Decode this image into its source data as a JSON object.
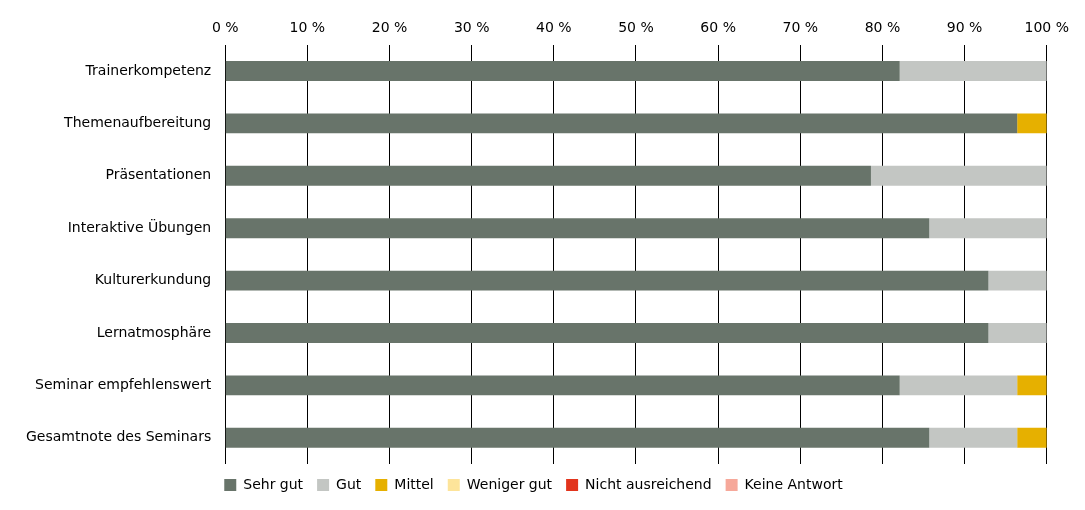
{
  "chart_data": {
    "type": "bar",
    "orientation": "horizontal",
    "stacked": true,
    "categories": [
      "Trainerkompetenz",
      "Themenaufbereitung",
      "Präsentationen",
      "Interaktive Übungen",
      "Kulturerkundung",
      "Lernatmosphäre",
      "Seminar empfehlenswert",
      "Gesamtnote des Seminars"
    ],
    "series": [
      {
        "name": "Sehr gut",
        "color": "#68746a",
        "values": [
          82.1,
          96.4,
          78.6,
          85.7,
          92.9,
          92.9,
          82.1,
          85.7
        ]
      },
      {
        "name": "Gut",
        "color": "#c3c6c3",
        "values": [
          17.9,
          0,
          21.4,
          14.3,
          7.1,
          7.1,
          14.3,
          10.7
        ]
      },
      {
        "name": "Mittel",
        "color": "#e6b000",
        "values": [
          0,
          3.6,
          0,
          0,
          0,
          0,
          3.6,
          3.6
        ]
      },
      {
        "name": "Weniger gut",
        "color": "#fde49a",
        "values": [
          0,
          0,
          0,
          0,
          0,
          0,
          0,
          0
        ]
      },
      {
        "name": "Nicht ausreichend",
        "color": "#e2341d",
        "values": [
          0,
          0,
          0,
          0,
          0,
          0,
          0,
          0
        ]
      },
      {
        "name": "Keine Antwort",
        "color": "#f6a89a",
        "values": [
          0,
          0,
          0,
          0,
          0,
          0,
          0,
          0
        ]
      }
    ],
    "xlim": [
      0,
      100
    ],
    "xticks": [
      {
        "value": 0,
        "label": "0 %"
      },
      {
        "value": 10,
        "label": "10 %"
      },
      {
        "value": 20,
        "label": "20 %"
      },
      {
        "value": 30,
        "label": "30 %"
      },
      {
        "value": 40,
        "label": "40 %"
      },
      {
        "value": 50,
        "label": "50 %"
      },
      {
        "value": 60,
        "label": "60 %"
      },
      {
        "value": 70,
        "label": "70 %"
      },
      {
        "value": 80,
        "label": "80 %"
      },
      {
        "value": 90,
        "label": "90 %"
      },
      {
        "value": 100,
        "label": "100 %"
      }
    ],
    "grid": "x",
    "legend": "bottom"
  }
}
